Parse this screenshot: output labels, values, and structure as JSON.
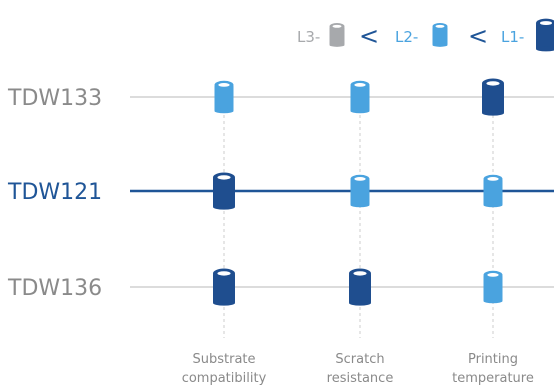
{
  "legend": {
    "items": [
      {
        "label": "L3-",
        "level": "L3",
        "color": "#a7a9ac",
        "text_color": "#a7a9ac"
      },
      {
        "label": "L2-",
        "level": "L2",
        "color": "#4aa3df",
        "text_color": "#4aa3df"
      },
      {
        "label": "L1-",
        "level": "L1",
        "color": "#1f4e8f",
        "text_color": "#4aa3df"
      }
    ],
    "separator": "<"
  },
  "colors": {
    "L1": "#1f4e8f",
    "L2": "#4aa3df",
    "L3": "#a7a9ac",
    "row_line": "#c8c8c8",
    "row_line_highlight": "#1f5597",
    "row_label": "#8a8a8a",
    "row_label_highlight": "#1f5597",
    "column_label": "#8a8a8a",
    "dashed": "#cccccc"
  },
  "columns": [
    {
      "line1": "Substrate",
      "line2": "compatibility"
    },
    {
      "line1": "Scratch",
      "line2": "resistance"
    },
    {
      "line1": "Printing",
      "line2": "temperature"
    }
  ],
  "rows": [
    {
      "name": "TDW133",
      "highlight": false,
      "levels": [
        "L2",
        "L2",
        "L1"
      ]
    },
    {
      "name": "TDW121",
      "highlight": true,
      "levels": [
        "L1",
        "L2",
        "L2"
      ]
    },
    {
      "name": "TDW136",
      "highlight": false,
      "levels": [
        "L1",
        "L1",
        "L2"
      ]
    }
  ]
}
